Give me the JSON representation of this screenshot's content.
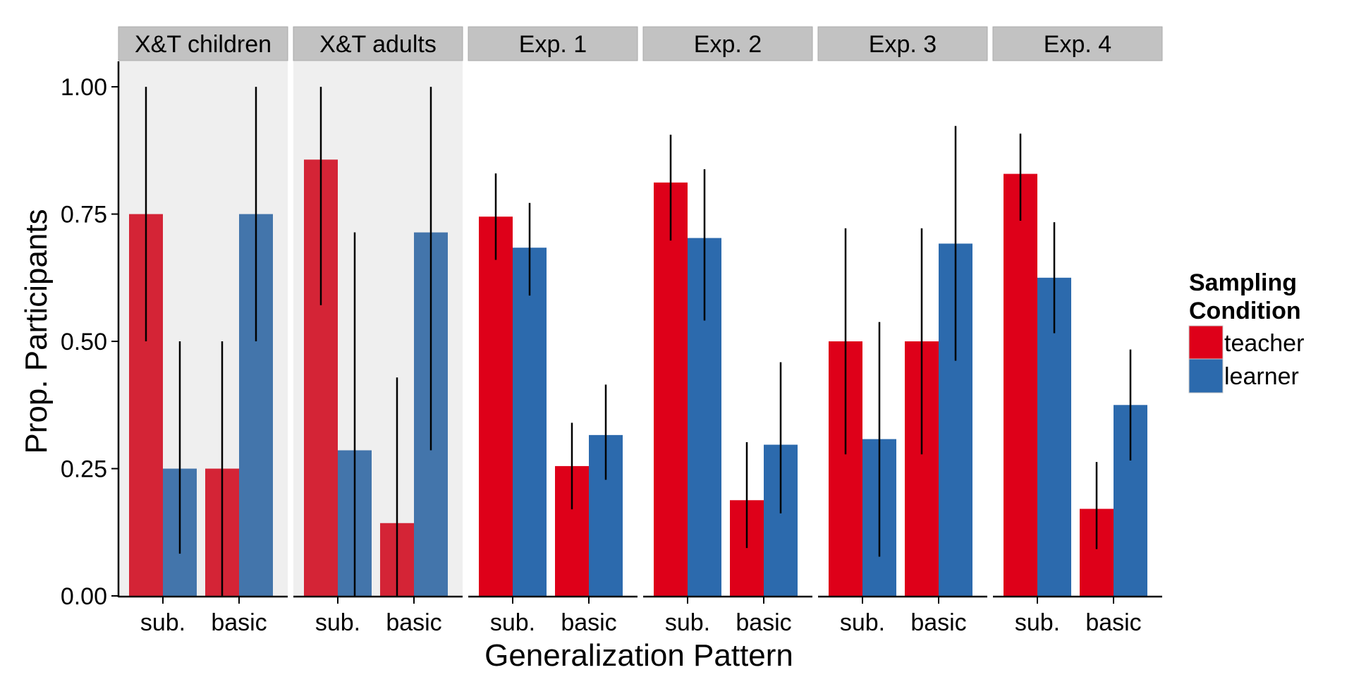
{
  "chart_data": {
    "type": "bar",
    "xlabel": "Generalization Pattern",
    "ylabel": "Prop. Participants",
    "ylim": [
      0,
      1.05
    ],
    "yticks": [
      0,
      0.25,
      0.5,
      0.75,
      1
    ],
    "ytick_labels": [
      "0.00",
      "0.25",
      "0.50",
      "0.75",
      "1.00"
    ],
    "categories": [
      "sub.",
      "basic"
    ],
    "legend": {
      "title_lines": [
        "Sampling",
        "Condition"
      ],
      "placement": "right",
      "entries": [
        {
          "key": "teacher",
          "label": "teacher"
        },
        {
          "key": "learner",
          "label": "learner"
        }
      ]
    },
    "colors": {
      "teacher": "#de0019",
      "learner": "#2c6aad",
      "teacher_shaded": "#d42436",
      "learner_shaded": "#4375ab",
      "panel_shaded_bg": "#efefef",
      "strip_bg": "#c2c2c2"
    },
    "panels": [
      {
        "title": "X&T children",
        "shaded": true,
        "series": [
          {
            "key": "teacher",
            "values": [
              0.75,
              0.25
            ],
            "err_low": [
              0.5,
              0.0
            ],
            "err_high": [
              1.0,
              0.5
            ]
          },
          {
            "key": "learner",
            "values": [
              0.25,
              0.75
            ],
            "err_low": [
              0.083,
              0.5
            ],
            "err_high": [
              0.5,
              1.0
            ]
          }
        ]
      },
      {
        "title": "X&T adults",
        "shaded": true,
        "series": [
          {
            "key": "teacher",
            "values": [
              0.857,
              0.143
            ],
            "err_low": [
              0.571,
              0.0
            ],
            "err_high": [
              1.0,
              0.429
            ]
          },
          {
            "key": "learner",
            "values": [
              0.286,
              0.714
            ],
            "err_low": [
              0.0,
              0.286
            ],
            "err_high": [
              0.714,
              1.0
            ]
          }
        ]
      },
      {
        "title": "Exp. 1",
        "shaded": false,
        "series": [
          {
            "key": "teacher",
            "values": [
              0.745,
              0.255
            ],
            "err_low": [
              0.66,
              0.17
            ],
            "err_high": [
              0.83,
              0.34
            ]
          },
          {
            "key": "learner",
            "values": [
              0.684,
              0.316
            ],
            "err_low": [
              0.59,
              0.228
            ],
            "err_high": [
              0.772,
              0.415
            ]
          }
        ]
      },
      {
        "title": "Exp. 2",
        "shaded": false,
        "series": [
          {
            "key": "teacher",
            "values": [
              0.812,
              0.188
            ],
            "err_low": [
              0.698,
              0.094
            ],
            "err_high": [
              0.906,
              0.302
            ]
          },
          {
            "key": "learner",
            "values": [
              0.703,
              0.297
            ],
            "err_low": [
              0.541,
              0.162
            ],
            "err_high": [
              0.838,
              0.459
            ]
          }
        ]
      },
      {
        "title": "Exp. 3",
        "shaded": false,
        "series": [
          {
            "key": "teacher",
            "values": [
              0.5,
              0.5
            ],
            "err_low": [
              0.278,
              0.278
            ],
            "err_high": [
              0.722,
              0.722
            ]
          },
          {
            "key": "learner",
            "values": [
              0.308,
              0.692
            ],
            "err_low": [
              0.077,
              0.462
            ],
            "err_high": [
              0.538,
              0.923
            ]
          }
        ]
      },
      {
        "title": "Exp. 4",
        "shaded": false,
        "series": [
          {
            "key": "teacher",
            "values": [
              0.829,
              0.171
            ],
            "err_low": [
              0.737,
              0.092
            ],
            "err_high": [
              0.908,
              0.263
            ]
          },
          {
            "key": "learner",
            "values": [
              0.625,
              0.375
            ],
            "err_low": [
              0.516,
              0.266
            ],
            "err_high": [
              0.734,
              0.484
            ]
          }
        ]
      }
    ]
  }
}
